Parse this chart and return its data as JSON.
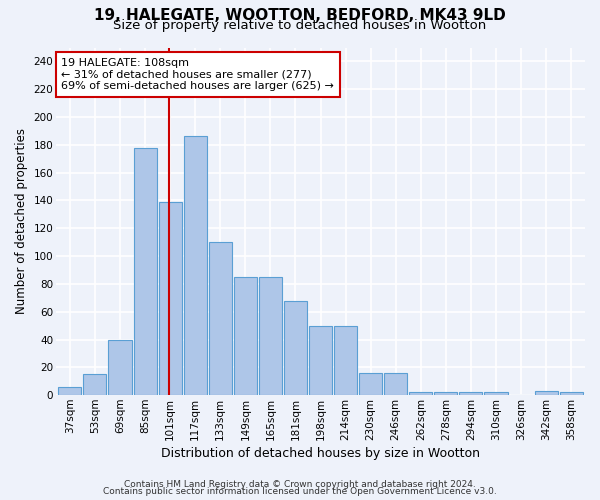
{
  "title1": "19, HALEGATE, WOOTTON, BEDFORD, MK43 9LD",
  "title2": "Size of property relative to detached houses in Wootton",
  "xlabel": "Distribution of detached houses by size in Wootton",
  "ylabel": "Number of detached properties",
  "categories": [
    "37sqm",
    "53sqm",
    "69sqm",
    "85sqm",
    "101sqm",
    "117sqm",
    "133sqm",
    "149sqm",
    "165sqm",
    "181sqm",
    "198sqm",
    "214sqm",
    "230sqm",
    "246sqm",
    "262sqm",
    "278sqm",
    "294sqm",
    "310sqm",
    "326sqm",
    "342sqm",
    "358sqm"
  ],
  "values": [
    6,
    15,
    40,
    178,
    139,
    186,
    110,
    85,
    85,
    68,
    50,
    50,
    16,
    16,
    2,
    2,
    2,
    2,
    0,
    3,
    2
  ],
  "bar_color": "#aec6e8",
  "bar_edge_color": "#5a9fd4",
  "annotation_line1": "19 HALEGATE: 108sqm",
  "annotation_line2": "← 31% of detached houses are smaller (277)",
  "annotation_line3": "69% of semi-detached houses are larger (625) →",
  "annotation_box_color": "#ffffff",
  "annotation_box_edge_color": "#cc0000",
  "vline_color": "#cc0000",
  "ylim": [
    0,
    250
  ],
  "yticks": [
    0,
    20,
    40,
    60,
    80,
    100,
    120,
    140,
    160,
    180,
    200,
    220,
    240
  ],
  "footer1": "Contains HM Land Registry data © Crown copyright and database right 2024.",
  "footer2": "Contains public sector information licensed under the Open Government Licence v3.0.",
  "bg_color": "#eef2fa",
  "grid_color": "#ffffff",
  "title1_fontsize": 11,
  "title2_fontsize": 9.5,
  "xlabel_fontsize": 9,
  "ylabel_fontsize": 8.5,
  "tick_fontsize": 7.5,
  "annotation_fontsize": 8,
  "footer_fontsize": 6.5
}
